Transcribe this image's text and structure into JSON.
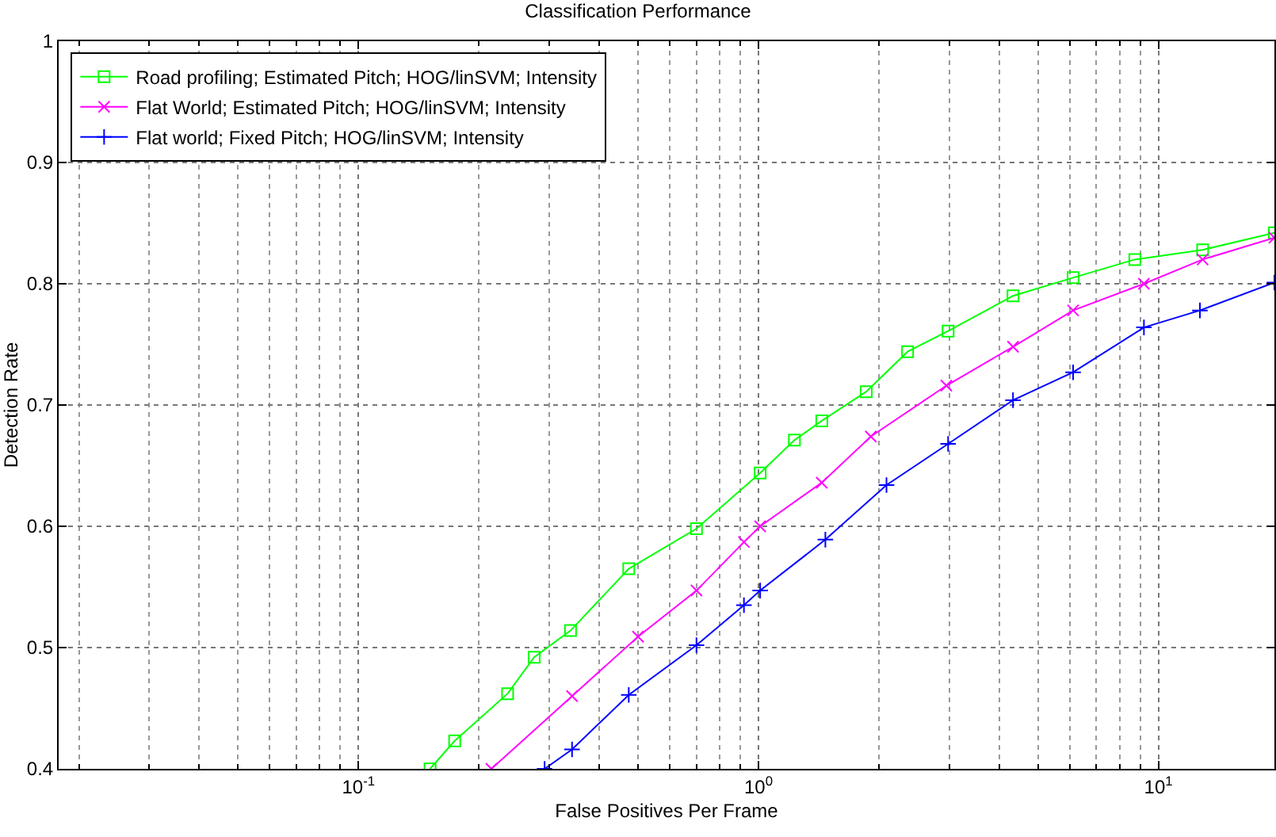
{
  "chart_data": {
    "type": "line",
    "title": "Classification Performance",
    "xlabel": "False Positives Per Frame",
    "ylabel": "Detection Rate",
    "log": "x",
    "grid": true,
    "legend": "top left",
    "line_style": "solid",
    "xlim": [
      0.0178,
      19.5
    ],
    "xticks": [
      {
        "value": 0.1,
        "label": "10$^{-1}$"
      },
      {
        "value": 1,
        "label": "10$^{0}$"
      },
      {
        "value": 10,
        "label": "10$^{1}$"
      }
    ],
    "ylim": [
      0.4,
      1
    ],
    "yticks": [
      0.4,
      0.5,
      0.6,
      0.7,
      0.8,
      0.9,
      1
    ],
    "series": [
      {
        "name": "Road profiling; Estimated Pitch; HOG/linSVM; Intensity",
        "color": "#00ff00",
        "marker": "square",
        "x": [
          0.151,
          0.174,
          0.236,
          0.275,
          0.339,
          0.474,
          0.7,
          1.01,
          1.23,
          1.44,
          1.86,
          2.36,
          2.98,
          4.33,
          6.12,
          8.73,
          12.9,
          19.5
        ],
        "values": [
          0.4,
          0.423,
          0.462,
          0.492,
          0.514,
          0.565,
          0.598,
          0.644,
          0.671,
          0.687,
          0.711,
          0.744,
          0.761,
          0.79,
          0.805,
          0.82,
          0.828,
          0.842
        ]
      },
      {
        "name": "Flat World; Estimated Pitch; HOG/linSVM; Intensity",
        "color": "#ff00ff",
        "marker": "x",
        "x": [
          0.215,
          0.342,
          0.5,
          0.7,
          0.92,
          1.01,
          1.44,
          1.91,
          2.95,
          4.33,
          6.12,
          9.2,
          12.9,
          19.5
        ],
        "values": [
          0.4,
          0.46,
          0.509,
          0.547,
          0.587,
          0.6,
          0.636,
          0.674,
          0.716,
          0.748,
          0.778,
          0.8,
          0.82,
          0.838
        ]
      },
      {
        "name": "Flat world; Fixed Pitch; HOG/linSVM; Intensity",
        "color": "#0000ff",
        "marker": "cross",
        "x": [
          0.292,
          0.342,
          0.474,
          0.7,
          0.92,
          1.01,
          1.47,
          2.09,
          2.98,
          4.33,
          6.12,
          9.2,
          12.7,
          19.5
        ],
        "values": [
          0.4,
          0.416,
          0.461,
          0.502,
          0.535,
          0.547,
          0.589,
          0.634,
          0.668,
          0.704,
          0.727,
          0.764,
          0.778,
          0.801
        ]
      }
    ]
  }
}
